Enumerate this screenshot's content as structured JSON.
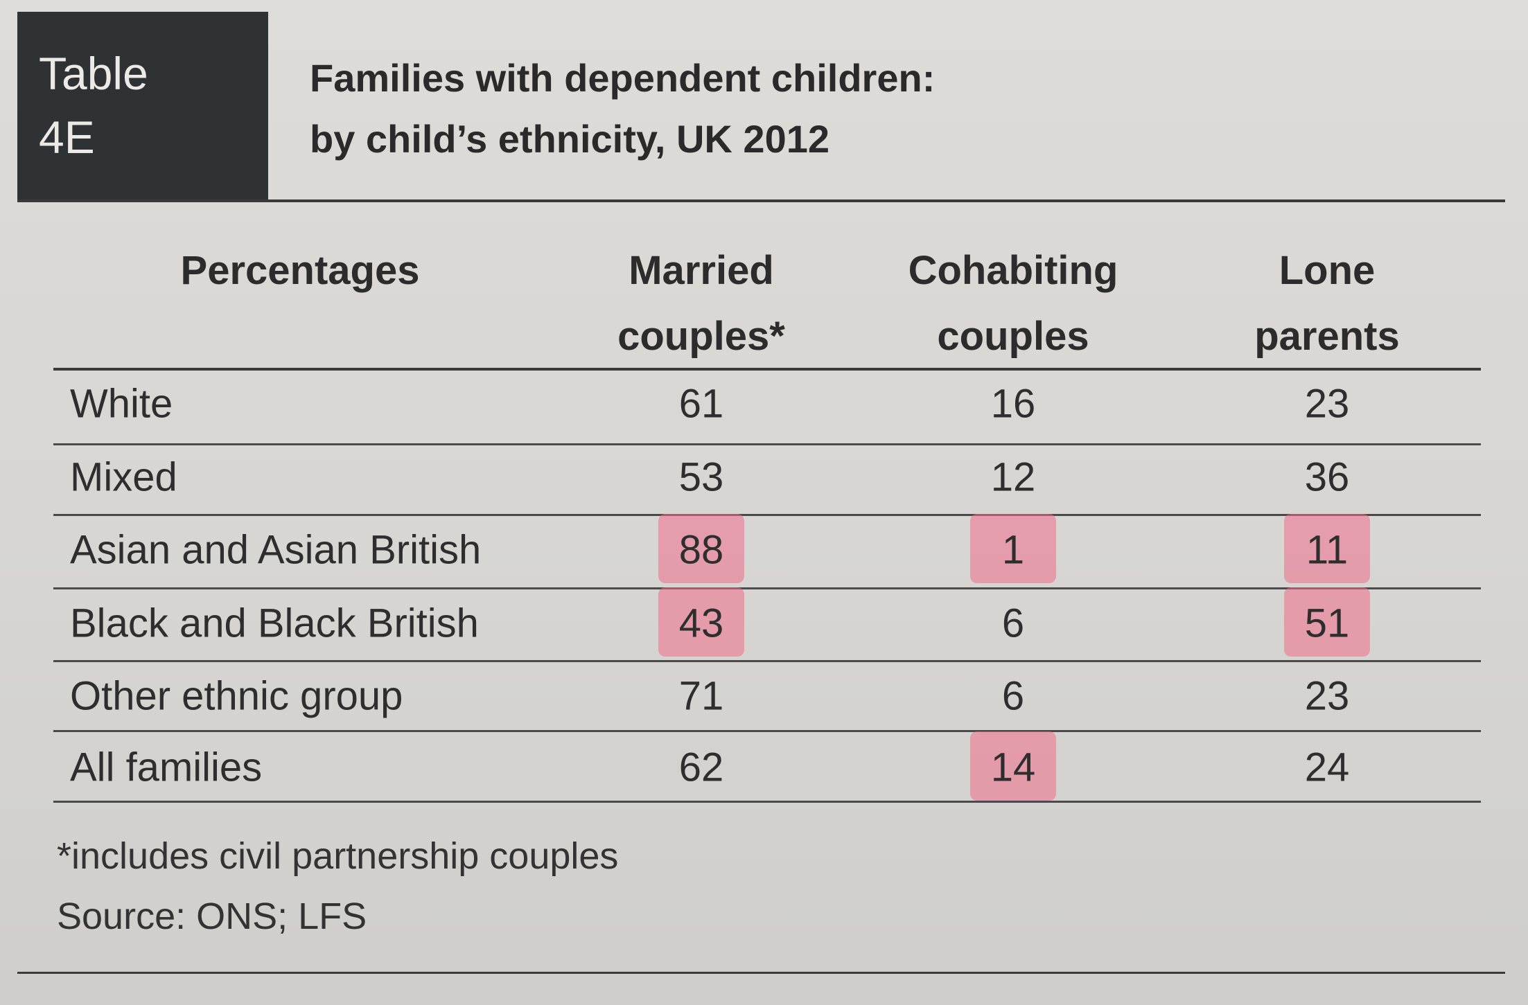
{
  "label": {
    "line1": "Table",
    "line2": "4E"
  },
  "title": {
    "lines": [
      "Families with dependent children:",
      "by child’s ethnicity, UK 2012"
    ]
  },
  "table": {
    "headers": [
      [
        "Percentages"
      ],
      [
        "Married",
        "couples*"
      ],
      [
        "Cohabiting",
        "couples"
      ],
      [
        "Lone",
        "parents"
      ]
    ],
    "rows": [
      [
        "White",
        61,
        16,
        23
      ],
      [
        "Mixed",
        53,
        12,
        36
      ],
      [
        "Asian and Asian British",
        88,
        1,
        11
      ],
      [
        "Black and Black British",
        43,
        6,
        51
      ],
      [
        "Other ethnic group",
        71,
        6,
        23
      ],
      [
        "All families",
        62,
        14,
        24
      ]
    ]
  },
  "footnote": "*includes civil partnership couples",
  "source": "Source: ONS; LFS"
}
